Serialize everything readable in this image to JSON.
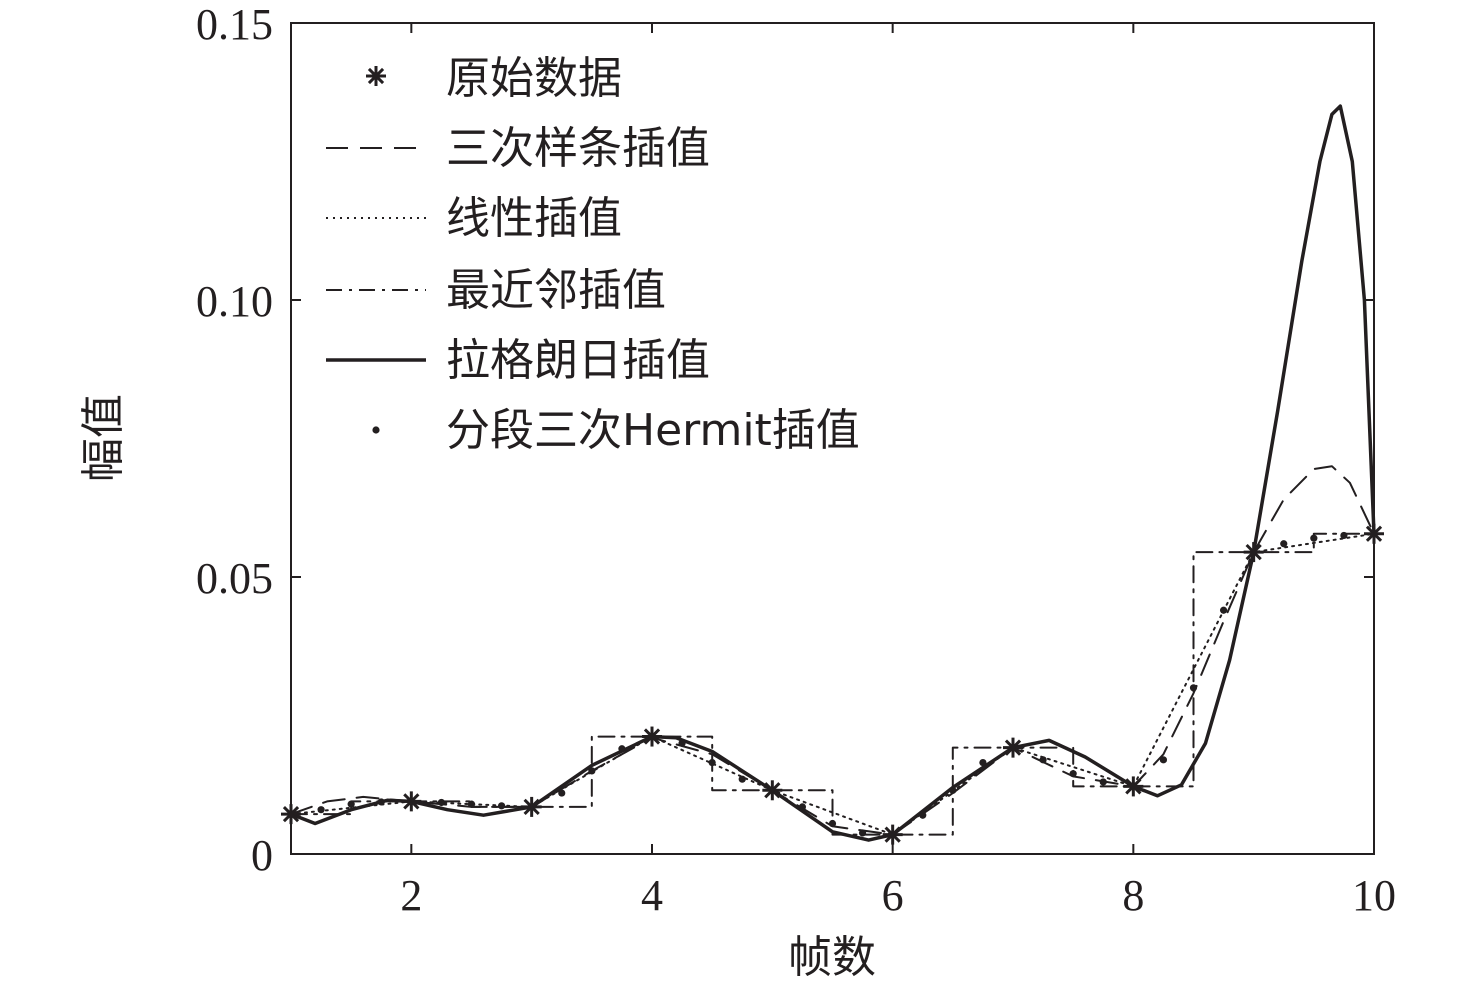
{
  "chart_data": {
    "type": "line",
    "xlabel": "帧数",
    "ylabel": "幅值",
    "xlim": [
      1,
      10
    ],
    "ylim": [
      0,
      0.15
    ],
    "x_ticks": [
      {
        "value": 2,
        "label": "2"
      },
      {
        "value": 4,
        "label": "4"
      },
      {
        "value": 6,
        "label": "6"
      },
      {
        "value": 8,
        "label": "8"
      },
      {
        "value": 10,
        "label": "10"
      }
    ],
    "y_ticks": [
      {
        "value": 0,
        "label": "0"
      },
      {
        "value": 0.05,
        "label": "0.05"
      },
      {
        "value": 0.1,
        "label": "0.10"
      },
      {
        "value": 0.15,
        "label": "0.15"
      }
    ],
    "grid": false,
    "legend_position": "top-left",
    "colors": {
      "ink": "#231f20",
      "background": "#ffffff"
    },
    "series": [
      {
        "name": "原始数据",
        "style": "marker-star",
        "x": [
          1,
          2,
          3,
          4,
          5,
          6,
          7,
          8,
          9,
          10
        ],
        "y": [
          0.0072,
          0.0095,
          0.0085,
          0.0212,
          0.0115,
          0.0035,
          0.0192,
          0.0122,
          0.0545,
          0.0578
        ]
      },
      {
        "name": "三次样条插值",
        "style": "dashed",
        "x": [
          1,
          1.3,
          1.6,
          2,
          2.5,
          3,
          3.5,
          4,
          4.5,
          5,
          5.5,
          6,
          6.5,
          7,
          7.5,
          8,
          8.25,
          8.5,
          8.75,
          9,
          9.25,
          9.5,
          9.65,
          9.8,
          10
        ],
        "y": [
          0.0072,
          0.0095,
          0.0103,
          0.0095,
          0.0085,
          0.0085,
          0.015,
          0.021,
          0.018,
          0.0115,
          0.005,
          0.0035,
          0.011,
          0.0192,
          0.014,
          0.0122,
          0.018,
          0.029,
          0.042,
          0.0545,
          0.064,
          0.0695,
          0.07,
          0.067,
          0.0578
        ]
      },
      {
        "name": "线性插值",
        "style": "dotted",
        "x": [
          1,
          2,
          3,
          4,
          5,
          6,
          7,
          8,
          9,
          10
        ],
        "y": [
          0.0072,
          0.0095,
          0.0085,
          0.0212,
          0.0115,
          0.0035,
          0.0192,
          0.0122,
          0.0545,
          0.0578
        ]
      },
      {
        "name": "最近邻插值",
        "style": "dashdot",
        "x": [
          1,
          1.5,
          1.5,
          2.5,
          2.5,
          3.5,
          3.5,
          4.5,
          4.5,
          5.5,
          5.5,
          6.5,
          6.5,
          7.5,
          7.5,
          8.5,
          8.5,
          9.5,
          9.5,
          10
        ],
        "y": [
          0.0072,
          0.0072,
          0.0095,
          0.0095,
          0.0085,
          0.0085,
          0.0212,
          0.0212,
          0.0115,
          0.0115,
          0.0035,
          0.0035,
          0.0192,
          0.0192,
          0.0122,
          0.0122,
          0.0545,
          0.0545,
          0.0578,
          0.0578
        ]
      },
      {
        "name": "拉格朗日插值",
        "style": "solid",
        "x": [
          1,
          1.2,
          1.5,
          1.8,
          2,
          2.3,
          2.6,
          3,
          3.5,
          4,
          4.2,
          4.5,
          5,
          5.5,
          5.8,
          6,
          6.5,
          7,
          7.3,
          7.6,
          8,
          8.2,
          8.4,
          8.6,
          8.8,
          9,
          9.2,
          9.4,
          9.55,
          9.65,
          9.72,
          9.82,
          9.92,
          10
        ],
        "y": [
          0.0072,
          0.0055,
          0.008,
          0.0097,
          0.0095,
          0.008,
          0.007,
          0.0085,
          0.016,
          0.0212,
          0.021,
          0.0185,
          0.0115,
          0.004,
          0.0025,
          0.0035,
          0.012,
          0.0192,
          0.0205,
          0.0175,
          0.0122,
          0.0105,
          0.0125,
          0.02,
          0.035,
          0.0545,
          0.08,
          0.107,
          0.125,
          0.1335,
          0.135,
          0.125,
          0.1,
          0.0578
        ]
      },
      {
        "name": "分段三次Hermit插值",
        "style": "dots",
        "x": [
          1,
          1.25,
          1.5,
          1.75,
          2,
          2.25,
          2.5,
          2.75,
          3,
          3.25,
          3.5,
          3.75,
          4,
          4.25,
          4.5,
          4.75,
          5,
          5.25,
          5.5,
          5.75,
          6,
          6.25,
          6.5,
          6.75,
          7,
          7.25,
          7.5,
          7.75,
          8,
          8.25,
          8.5,
          8.75,
          9,
          9.25,
          9.5,
          9.75,
          10
        ],
        "y": [
          0.0072,
          0.008,
          0.009,
          0.0094,
          0.0095,
          0.0093,
          0.009,
          0.0087,
          0.0085,
          0.011,
          0.015,
          0.019,
          0.0212,
          0.02,
          0.0165,
          0.0135,
          0.0115,
          0.0085,
          0.0055,
          0.0038,
          0.0035,
          0.007,
          0.0115,
          0.0165,
          0.0192,
          0.017,
          0.0145,
          0.013,
          0.0122,
          0.017,
          0.03,
          0.044,
          0.0545,
          0.056,
          0.057,
          0.0575,
          0.0578
        ]
      }
    ]
  }
}
